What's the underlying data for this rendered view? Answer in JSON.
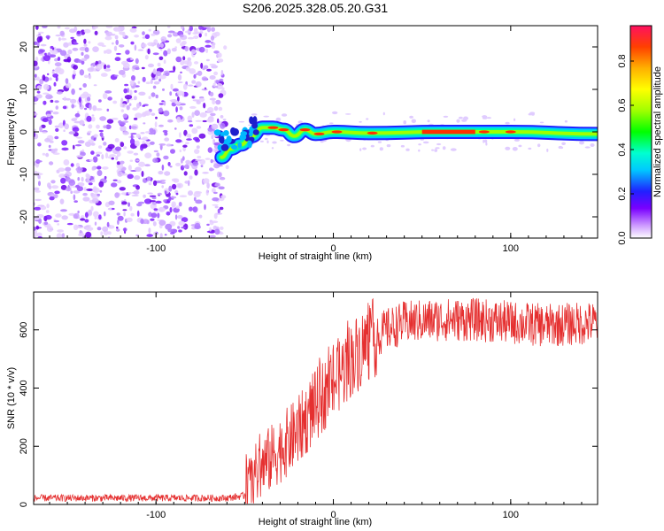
{
  "title": "S206.2025.328.05.20.G31",
  "chart_data": [
    {
      "type": "heatmap",
      "name": "spectrogram",
      "xlabel": "Height of straight line (km)",
      "ylabel": "Frequency (Hz)",
      "xlim": [
        -169,
        149
      ],
      "ylim": [
        -25,
        25
      ],
      "xticks": [
        -100,
        0,
        100
      ],
      "xtick_labels": [
        "-100",
        "0",
        "100"
      ],
      "yticks": [
        -20,
        -10,
        0,
        10,
        20
      ],
      "ytick_labels": [
        "-20",
        "-10",
        "0",
        "10",
        "20"
      ],
      "noise_region_x": [
        -169,
        -62
      ],
      "signal_ridge": [
        {
          "x": -63,
          "y": -6
        },
        {
          "x": -58,
          "y": -4
        },
        {
          "x": -52,
          "y": -3
        },
        {
          "x": -46,
          "y": -1
        },
        {
          "x": -40,
          "y": 1
        },
        {
          "x": -34,
          "y": 1
        },
        {
          "x": -28,
          "y": 0.5
        },
        {
          "x": -22,
          "y": -1
        },
        {
          "x": -16,
          "y": 0.5
        },
        {
          "x": -10,
          "y": -0.5
        },
        {
          "x": 0,
          "y": 0
        },
        {
          "x": 20,
          "y": -0.3
        },
        {
          "x": 60,
          "y": 0
        },
        {
          "x": 100,
          "y": 0
        },
        {
          "x": 149,
          "y": -0.5
        }
      ],
      "colorbar": {
        "label": "Normalized spectral amplitude",
        "ticks": [
          0.0,
          0.2,
          0.4,
          0.6,
          0.8
        ],
        "tick_labels": [
          "0.0",
          "0.2",
          "0.4",
          "0.6",
          "0.8"
        ],
        "range": [
          0,
          0.96
        ]
      }
    },
    {
      "type": "line",
      "name": "snr",
      "xlabel": "Height of straight line (km)",
      "ylabel": "SNR (10 * v/v)",
      "xlim": [
        -169,
        149
      ],
      "ylim": [
        0,
        730
      ],
      "xticks": [
        -100,
        0,
        100
      ],
      "xtick_labels": [
        "-100",
        "0",
        "100"
      ],
      "yticks": [
        0,
        200,
        400,
        600
      ],
      "ytick_labels": [
        "0",
        "200",
        "400",
        "600"
      ],
      "line_color": "#e53030",
      "series": [
        {
          "name": "SNR envelope",
          "x": [
            -169,
            -100,
            -60,
            -50,
            -45,
            -40,
            -30,
            -20,
            -10,
            0,
            10,
            20,
            30,
            40,
            60,
            80,
            100,
            120,
            149
          ],
          "y": [
            22,
            22,
            22,
            30,
            90,
            130,
            190,
            250,
            340,
            420,
            500,
            560,
            600,
            625,
            635,
            635,
            625,
            615,
            625
          ]
        }
      ]
    }
  ],
  "colors": {
    "accent": "#e53030",
    "axis": "#000000",
    "noise": "#8a2be2"
  }
}
